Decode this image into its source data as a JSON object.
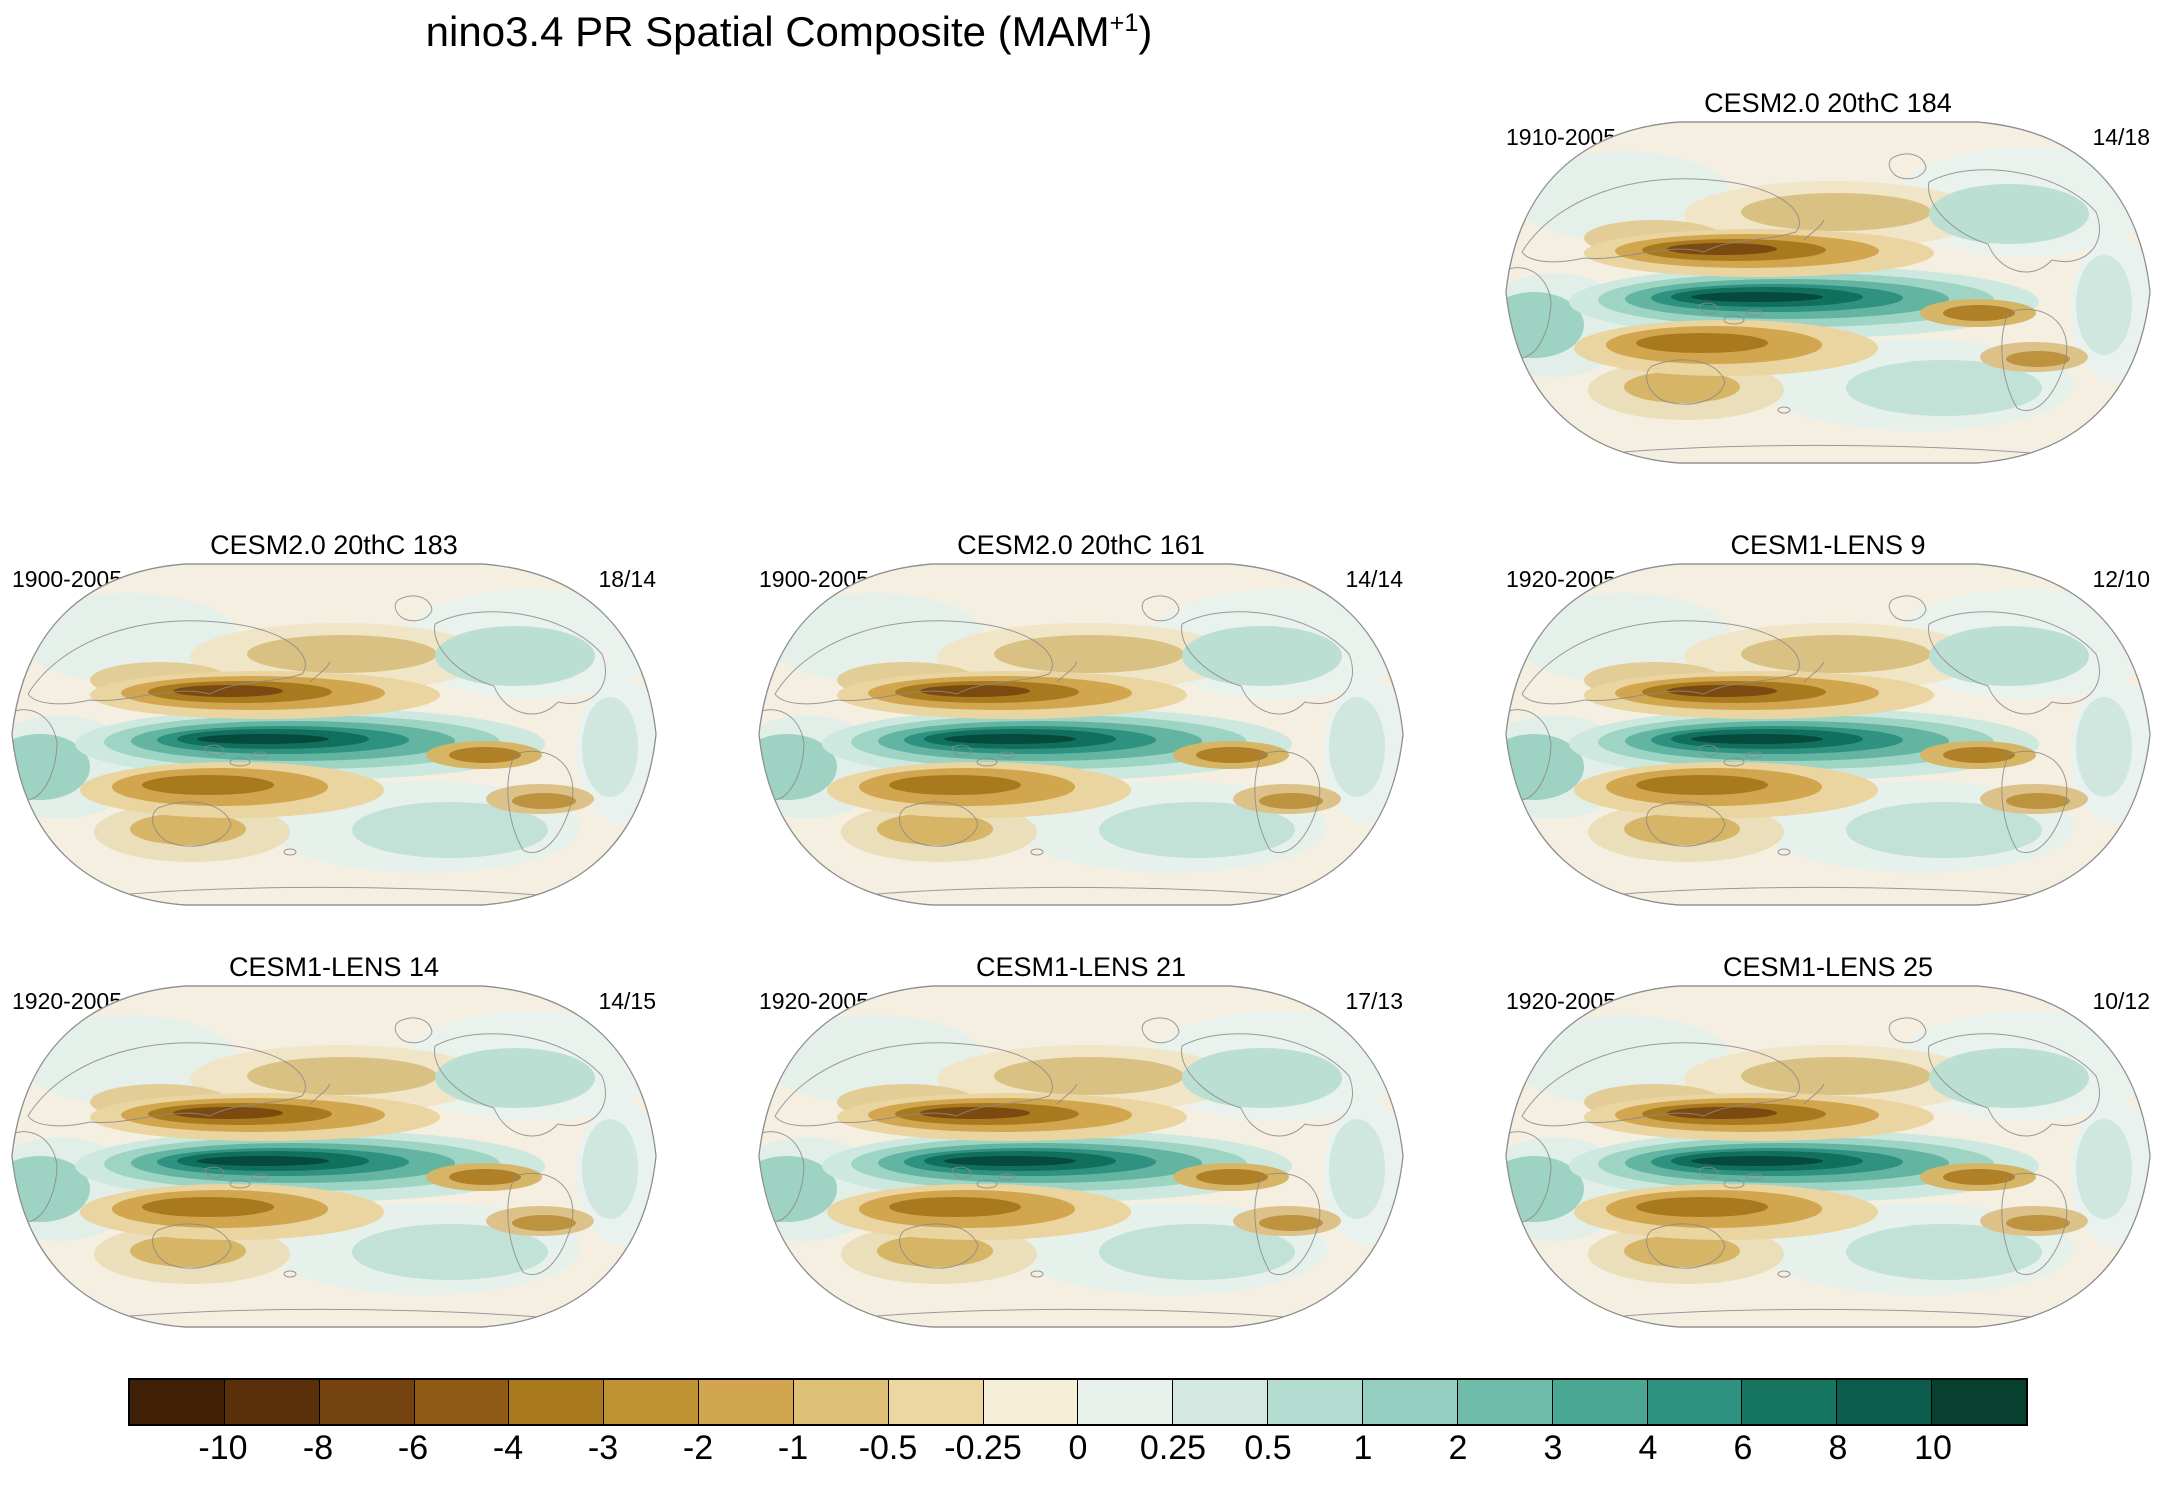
{
  "chart_data": {
    "type": "heatmap",
    "title": "nino3.4 PR Spatial Composite (MAM+1)",
    "title_parts": {
      "main": "nino3.4 PR Spatial Composite (MAM",
      "sup": "+1",
      "close": ")"
    },
    "projection": "robinson-like world map panels",
    "variable": "precipitation composite anomaly",
    "panels": [
      {
        "title": "CESM2.0 20thC 184",
        "years": "1910-2005",
        "count": "14/18"
      },
      {
        "title": "CESM2.0 20thC 183",
        "years": "1900-2005",
        "count": "18/14"
      },
      {
        "title": "CESM2.0 20thC 161",
        "years": "1900-2005",
        "count": "14/14"
      },
      {
        "title": "CESM1-LENS 9",
        "years": "1920-2005",
        "count": "12/10"
      },
      {
        "title": "CESM1-LENS 14",
        "years": "1920-2005",
        "count": "14/15"
      },
      {
        "title": "CESM1-LENS 21",
        "years": "1920-2005",
        "count": "17/13"
      },
      {
        "title": "CESM1-LENS 25",
        "years": "1920-2005",
        "count": "10/12"
      }
    ],
    "colorbar": {
      "orientation": "horizontal",
      "ticks": [
        "-10",
        "-8",
        "-6",
        "-4",
        "-3",
        "-2",
        "-1",
        "-0.5",
        "-0.25",
        "0",
        "0.25",
        "0.5",
        "1",
        "2",
        "3",
        "4",
        "6",
        "8",
        "10"
      ],
      "colors": [
        "#402108",
        "#5a300a",
        "#744310",
        "#8e5a14",
        "#a9791e",
        "#bf9232",
        "#d2a64f",
        "#dfc077",
        "#ecd7a3",
        "#f6efd8",
        "#e8f1ec",
        "#d2e8e0",
        "#b5dcd1",
        "#94cec0",
        "#6fbcab",
        "#4aa794",
        "#2f9180",
        "#15755f",
        "#0b5c4c",
        "#07402f"
      ],
      "negative_color_meaning": "#8e5a14",
      "positive_color_meaning": "#2f9180"
    }
  }
}
